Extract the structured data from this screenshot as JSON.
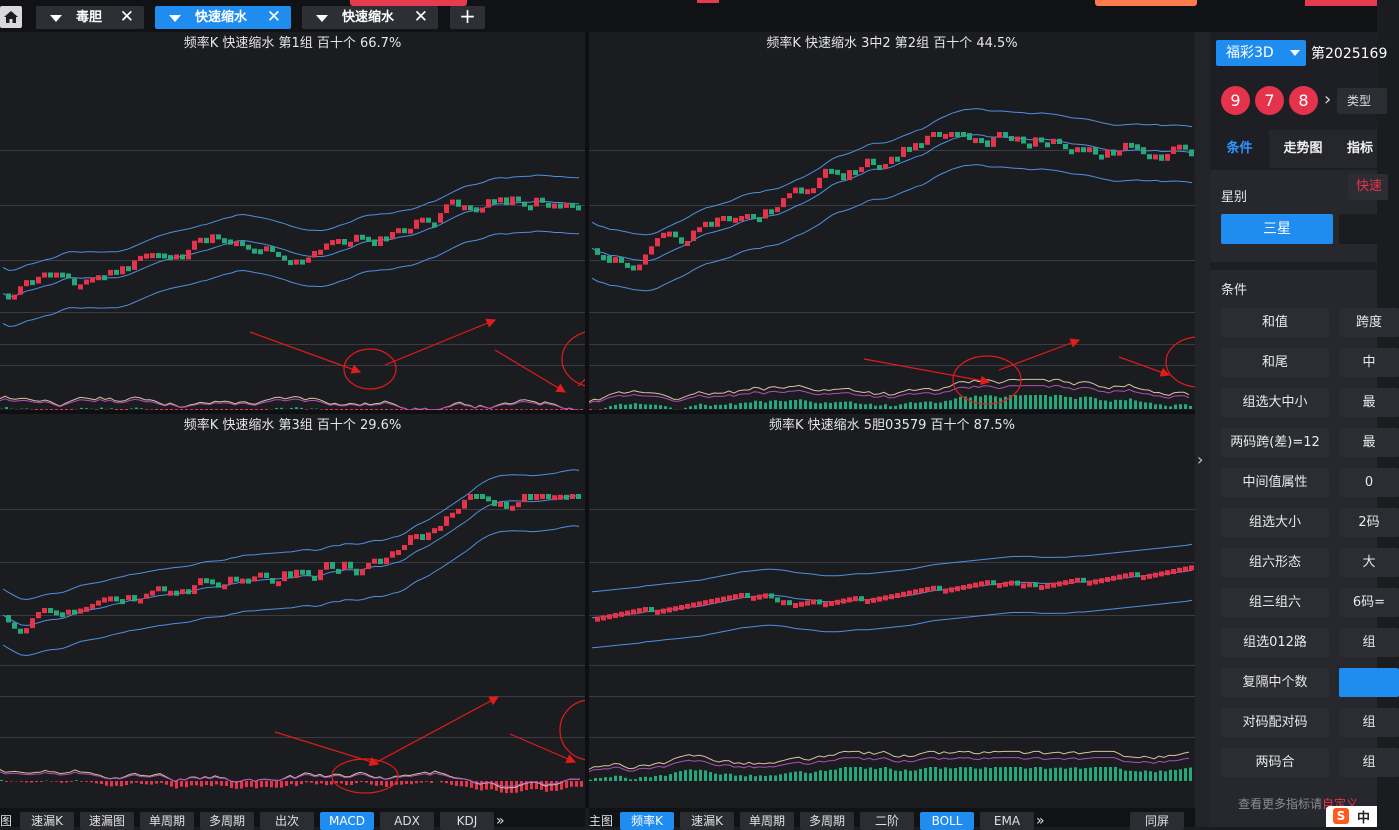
{
  "tabs": [
    {
      "label": "毒胆",
      "active": false
    },
    {
      "label": "快速缩水",
      "active": true
    },
    {
      "label": "快速缩水",
      "active": false
    }
  ],
  "charts": [
    {
      "title": "频率K  快速缩水  第1组  百十个  66.7%"
    },
    {
      "title": "频率K  快速缩水  3中2 第2组  百十个  44.5%"
    },
    {
      "title": "频率K  快速缩水  第3组  百十个  29.6%"
    },
    {
      "title": "频率K  快速缩水  5胆03579  百十个  87.5%"
    }
  ],
  "bottom_left": {
    "first": "图",
    "buttons": [
      "速漏K",
      "速漏图",
      "单周期",
      "多周期",
      "出次",
      "MACD",
      "ADX",
      "KDJ"
    ],
    "active": "MACD",
    "more": "»"
  },
  "bottom_right": {
    "first": "主图",
    "buttons": [
      "频率K",
      "速漏K",
      "单周期",
      "多周期",
      "二阶",
      "BOLL",
      "EMA"
    ],
    "active_primary": "频率K",
    "active_secondary": "BOLL",
    "more": "»",
    "fullscreen": "同屏"
  },
  "right_panel": {
    "lottery": "福彩3D",
    "issue": "第2025169",
    "balls": [
      "9",
      "7",
      "8"
    ],
    "type_btn": "类型",
    "tabs": [
      "条件",
      "走势图",
      "指标"
    ],
    "star_label": "星别",
    "fast_btn": "快速",
    "star_options": [
      "三星",
      ""
    ],
    "conditions_label": "条件",
    "conditions": [
      [
        "和值",
        "跨度"
      ],
      [
        "和尾",
        "中"
      ],
      [
        "组选大中小",
        "最"
      ],
      [
        "两码跨(差)=12",
        "最"
      ],
      [
        "中间值属性",
        "0"
      ],
      [
        "组选大小",
        "2码"
      ],
      [
        "组六形态",
        "大"
      ],
      [
        "组三组六",
        "6码="
      ],
      [
        "组选012路",
        "组"
      ],
      [
        "复隔中个数",
        ""
      ],
      [
        "对码配对码",
        "组"
      ],
      [
        "两码合",
        "组"
      ]
    ],
    "more_text": "查看更多指标请",
    "more_link": "自定义"
  },
  "colors": {
    "up": "#e5334b",
    "down": "#25a87a",
    "band": "#4f8fe0",
    "accent": "#1f8cf0"
  },
  "icons": [
    "home-icon",
    "close-icon",
    "plus-icon",
    "chevron-right-icon",
    "caret-down-icon",
    "sogou-icon"
  ]
}
